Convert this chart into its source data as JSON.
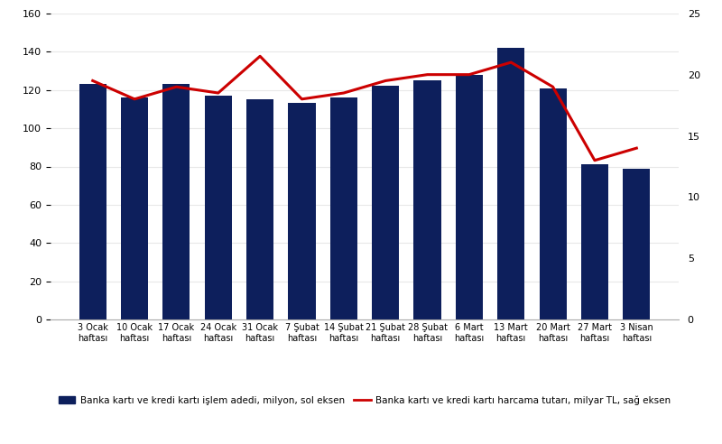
{
  "categories": [
    "3 Ocak\nhaftası",
    "10 Ocak\nhaftası",
    "17 Ocak\nhaftası",
    "24 Ocak\nhaftası",
    "31 Ocak\nhaftası",
    "7 Şubat\nhaftası",
    "14 Şubat\nhaftası",
    "21 Şubat\nhaftası",
    "28 Şubat\nhaftası",
    "6 Mart\nhaftası",
    "13 Mart\nhaftası",
    "20 Mart\nhaftası",
    "27 Mart\nhaftası",
    "3 Nisan\nhaftası"
  ],
  "bar_values": [
    123,
    116,
    123,
    117,
    115,
    113,
    116,
    122,
    125,
    128,
    142,
    121,
    81,
    79
  ],
  "line_values": [
    19.5,
    18.0,
    19.0,
    18.5,
    21.5,
    18.0,
    18.5,
    19.5,
    20.0,
    20.0,
    21.0,
    19.0,
    13.0,
    14.0
  ],
  "bar_color": "#0d1f5c",
  "line_color": "#cc0000",
  "left_ylim": [
    0,
    160
  ],
  "right_ylim": [
    0,
    25
  ],
  "left_yticks": [
    0,
    20,
    40,
    60,
    80,
    100,
    120,
    140,
    160
  ],
  "right_yticks": [
    0,
    5,
    10,
    15,
    20,
    25
  ],
  "legend_bar_label": "Banka kartı ve kredi kartı işlem adedi, milyon, sol eksen",
  "legend_line_label": "Banka kartı ve kredi kartı harcama tutarı, milyar TL, sağ eksen",
  "background_color": "#ffffff",
  "grid_color": "#e8e8e8",
  "bar_width": 0.65
}
